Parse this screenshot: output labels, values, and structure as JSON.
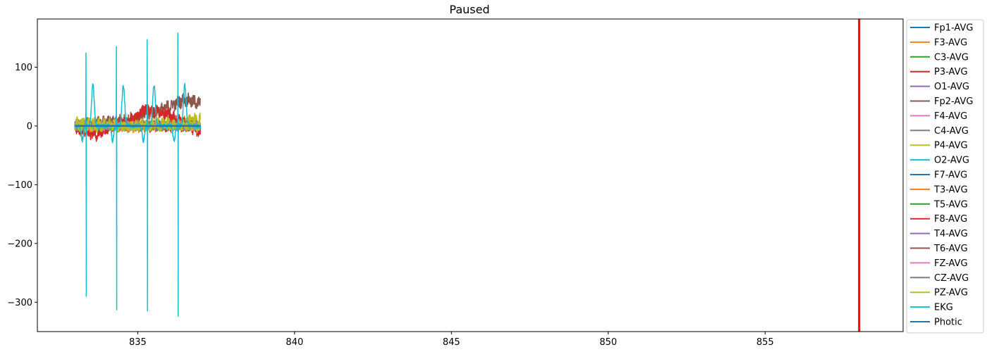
{
  "chart_data": {
    "type": "line",
    "title": "Paused",
    "xlabel": "",
    "ylabel": "",
    "xlim": [
      831.8,
      859.4
    ],
    "ylim": [
      -350,
      182
    ],
    "xticks": [
      835,
      840,
      845,
      850,
      855
    ],
    "yticks": [
      100,
      0,
      -100,
      -200,
      -300
    ],
    "grid": false,
    "legend_position": "outside-right",
    "time_window": [
      833.0,
      837.0
    ],
    "cursor": {
      "x": 858.0,
      "color": "#ff0000"
    },
    "series": [
      {
        "name": "Fp1-AVG",
        "color": "#1f77b4",
        "amplitude": 6,
        "offset": 0
      },
      {
        "name": "F3-AVG",
        "color": "#ff7f0e",
        "amplitude": 8,
        "offset": 0
      },
      {
        "name": "C3-AVG",
        "color": "#2ca02c",
        "amplitude": 6,
        "offset": 0
      },
      {
        "name": "P3-AVG",
        "color": "#d62728",
        "amplitude": 9,
        "offset": 0
      },
      {
        "name": "O1-AVG",
        "color": "#9467bd",
        "amplitude": 6,
        "offset": 0
      },
      {
        "name": "Fp2-AVG",
        "color": "#8c564b",
        "amplitude": 10,
        "offset": 0
      },
      {
        "name": "F4-AVG",
        "color": "#e377c2",
        "amplitude": 7,
        "offset": 0
      },
      {
        "name": "C4-AVG",
        "color": "#7f7f7f",
        "amplitude": 6,
        "offset": 0
      },
      {
        "name": "P4-AVG",
        "color": "#bcbd22",
        "amplitude": 9,
        "offset": 0
      },
      {
        "name": "O2-AVG",
        "color": "#17becf",
        "amplitude": 7,
        "offset": 0
      },
      {
        "name": "F7-AVG",
        "color": "#1f77b4",
        "amplitude": 7,
        "offset": 0
      },
      {
        "name": "T3-AVG",
        "color": "#ff7f0e",
        "amplitude": 7,
        "offset": 0
      },
      {
        "name": "T5-AVG",
        "color": "#2ca02c",
        "amplitude": 7,
        "offset": 0
      },
      {
        "name": "F8-AVG",
        "color": "#d62728",
        "amplitude": 9,
        "offset": 0
      },
      {
        "name": "T4-AVG",
        "color": "#9467bd",
        "amplitude": 7,
        "offset": 0
      },
      {
        "name": "T6-AVG",
        "color": "#8c564b",
        "amplitude": 7,
        "offset": 0
      },
      {
        "name": "FZ-AVG",
        "color": "#e377c2",
        "amplitude": 7,
        "offset": 0
      },
      {
        "name": "CZ-AVG",
        "color": "#7f7f7f",
        "amplitude": 7,
        "offset": 0
      },
      {
        "name": "PZ-AVG",
        "color": "#bcbd22",
        "amplitude": 9,
        "offset": 0
      },
      {
        "name": "EKG",
        "color": "#17becf",
        "ekg": true,
        "r_peaks": [
          {
            "x": 833.35,
            "max": 124,
            "min": -290
          },
          {
            "x": 834.32,
            "max": 135,
            "min": -313
          },
          {
            "x": 835.3,
            "max": 147,
            "min": -315
          },
          {
            "x": 836.28,
            "max": 158,
            "min": -324
          }
        ]
      },
      {
        "name": "Photic",
        "color": "#1f77b4",
        "flat": true,
        "offset": 0
      }
    ],
    "drift": {
      "F8-AVG": [
        [
          833.0,
          -5
        ],
        [
          833.7,
          -15
        ],
        [
          834.2,
          0
        ],
        [
          834.9,
          12
        ],
        [
          835.2,
          28
        ],
        [
          836.0,
          20
        ],
        [
          837.0,
          -12
        ]
      ],
      "Fp2-AVG": [
        [
          833.0,
          0
        ],
        [
          834.5,
          8
        ],
        [
          835.3,
          20
        ],
        [
          835.8,
          28
        ],
        [
          836.2,
          38
        ],
        [
          836.5,
          45
        ],
        [
          837.0,
          38
        ]
      ],
      "P4-AVG": [
        [
          833.0,
          5
        ],
        [
          835.0,
          2
        ],
        [
          836.5,
          8
        ],
        [
          837.0,
          12
        ]
      ],
      "EKG": [
        [
          833.0,
          0
        ],
        [
          837.0,
          0
        ]
      ]
    }
  }
}
